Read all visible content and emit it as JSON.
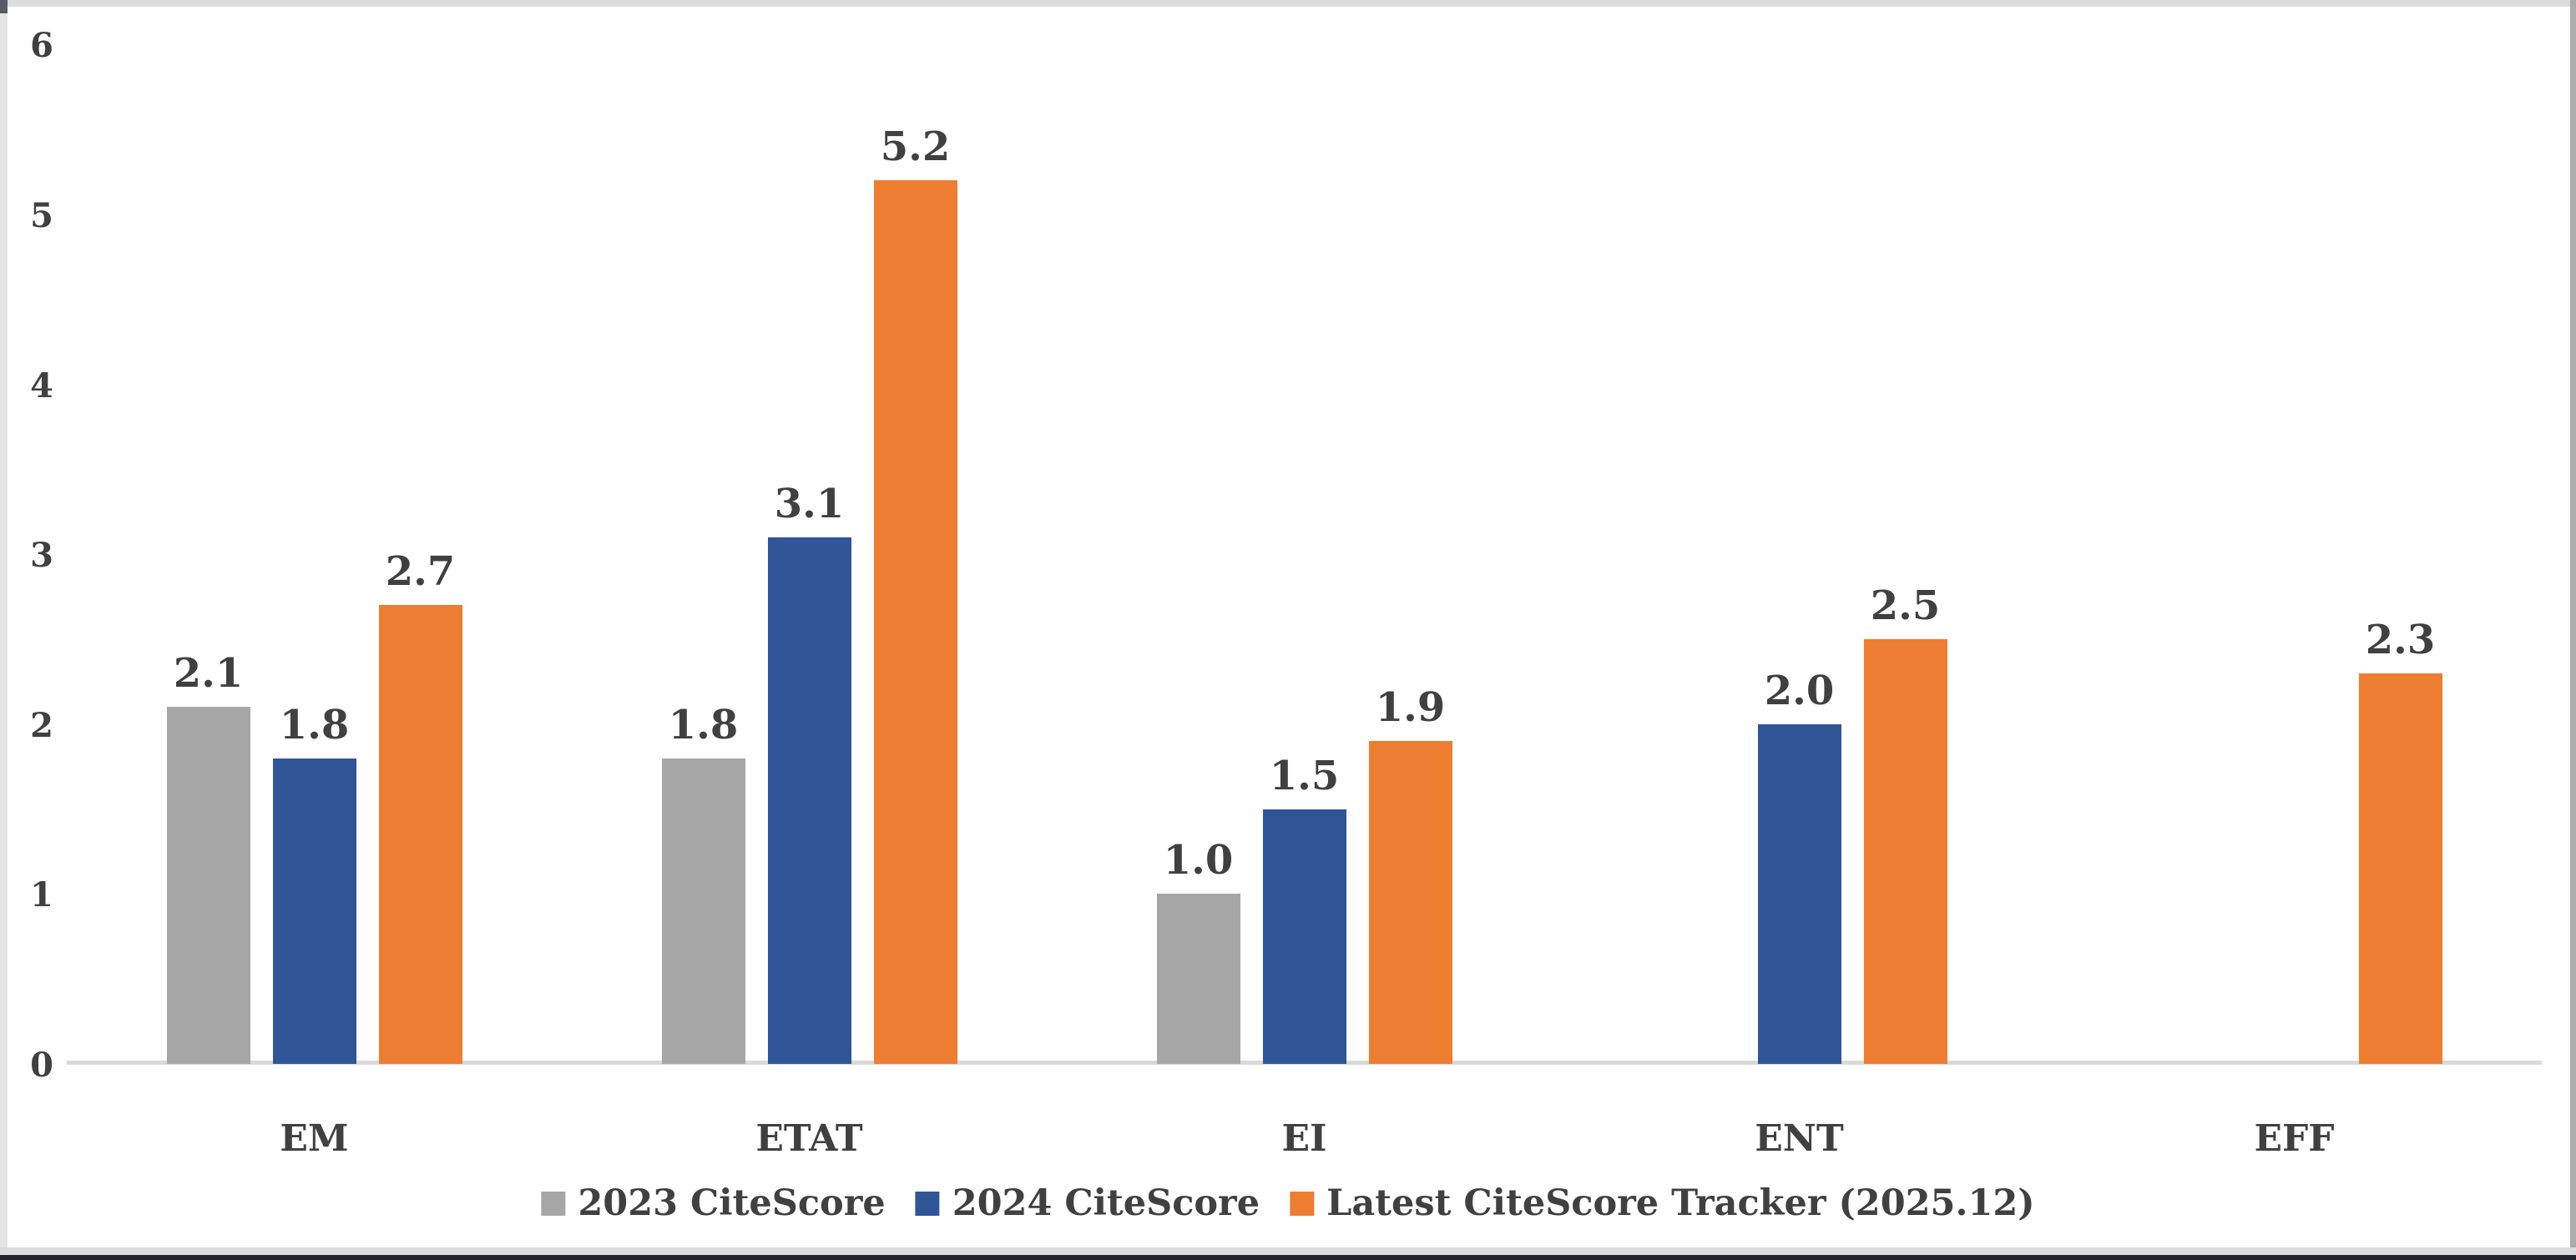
{
  "chart_data": {
    "type": "bar",
    "title": "",
    "xlabel": "",
    "ylabel": "",
    "categories": [
      "EM",
      "ETAT",
      "EI",
      "ENT",
      "EFF"
    ],
    "series": [
      {
        "name": "2023 CiteScore",
        "color": "#A6A6A6",
        "values": [
          2.1,
          1.8,
          1.0,
          null,
          null
        ]
      },
      {
        "name": "2024 CiteScore",
        "color": "#2F5597",
        "values": [
          1.8,
          3.1,
          1.5,
          2.0,
          null
        ]
      },
      {
        "name": "Latest CiteScore Tracker (2025.12)",
        "color": "#ED7D31",
        "values": [
          2.7,
          5.2,
          1.9,
          2.5,
          2.3
        ]
      }
    ],
    "yticks": [
      0,
      1,
      2,
      3,
      4,
      5,
      6
    ],
    "ylim": [
      0,
      6
    ],
    "value_labels_shown": true,
    "value_label_format": "one-decimal",
    "gridlines": false,
    "legend_position": "bottom-center"
  },
  "styles": {
    "text_color": "#404040",
    "axis_line_color": "#D9D9D9",
    "background": "#FFFFFF"
  }
}
